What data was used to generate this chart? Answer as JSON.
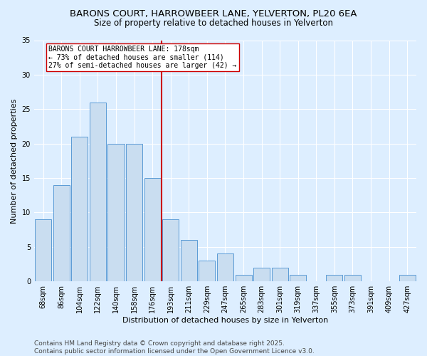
{
  "title_line1": "BARONS COURT, HARROWBEER LANE, YELVERTON, PL20 6EA",
  "title_line2": "Size of property relative to detached houses in Yelverton",
  "xlabel": "Distribution of detached houses by size in Yelverton",
  "ylabel": "Number of detached properties",
  "categories": [
    "68sqm",
    "86sqm",
    "104sqm",
    "122sqm",
    "140sqm",
    "158sqm",
    "176sqm",
    "193sqm",
    "211sqm",
    "229sqm",
    "247sqm",
    "265sqm",
    "283sqm",
    "301sqm",
    "319sqm",
    "337sqm",
    "355sqm",
    "373sqm",
    "391sqm",
    "409sqm",
    "427sqm"
  ],
  "values": [
    9,
    14,
    21,
    26,
    20,
    20,
    15,
    9,
    6,
    3,
    4,
    1,
    2,
    2,
    1,
    0,
    1,
    1,
    0,
    0,
    1
  ],
  "bar_color": "#c9ddf0",
  "bar_edge_color": "#5b9bd5",
  "vertical_line_color": "#cc0000",
  "annotation_text": "BARONS COURT HARROWBEER LANE: 178sqm\n← 73% of detached houses are smaller (114)\n27% of semi-detached houses are larger (42) →",
  "annotation_box_color": "#ffffff",
  "annotation_box_edge": "#cc0000",
  "ylim": [
    0,
    35
  ],
  "yticks": [
    0,
    5,
    10,
    15,
    20,
    25,
    30,
    35
  ],
  "background_color": "#ddeeff",
  "footer": "Contains HM Land Registry data © Crown copyright and database right 2025.\nContains public sector information licensed under the Open Government Licence v3.0.",
  "title_fontsize": 9.5,
  "subtitle_fontsize": 8.5,
  "axis_label_fontsize": 8,
  "tick_fontsize": 7,
  "annotation_fontsize": 7,
  "footer_fontsize": 6.5
}
